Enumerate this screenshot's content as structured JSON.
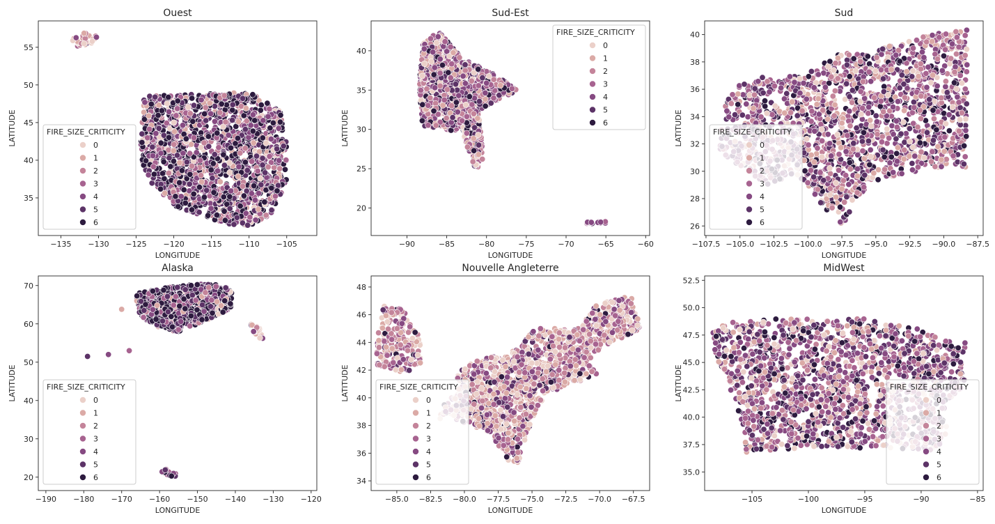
{
  "legend_title": "FIRE_SIZE_CRITICITY",
  "legend_classes": [
    "0",
    "1",
    "2",
    "3",
    "4",
    "5",
    "6"
  ],
  "palette": [
    "#ebd0c9",
    "#dbaaa6",
    "#c4849a",
    "#a76390",
    "#864a82",
    "#5c3367",
    "#2d1b3f"
  ],
  "chart_data": [
    {
      "type": "scatter",
      "title": "Ouest",
      "xlabel": "LONGITUDE",
      "ylabel": "LATITUDE",
      "xlim": [
        -138,
        -101
      ],
      "ylim": [
        30,
        58.5
      ],
      "xticks": [
        -135,
        -130,
        -125,
        -120,
        -115,
        -110,
        -105
      ],
      "yticks": [
        35,
        40,
        45,
        50,
        55
      ],
      "xtick_labels": [
        "−135",
        "−130",
        "−125",
        "−120",
        "−115",
        "−110",
        "−105"
      ],
      "ytick_labels": [
        "35",
        "40",
        "45",
        "50",
        "55"
      ],
      "grid": false,
      "legend_placement": "lower-left",
      "regions": [
        {
          "polygon": [
            [
              -124,
              48.5
            ],
            [
              -110,
              49
            ],
            [
              -106,
              47
            ],
            [
              -105,
              42
            ],
            [
              -105,
              37
            ],
            [
              -107,
              33
            ],
            [
              -109,
              31.3
            ],
            [
              -113,
              31.5
            ],
            [
              -116,
              32.5
            ],
            [
              -120,
              34
            ],
            [
              -123,
              37
            ],
            [
              -124.5,
              40
            ],
            [
              -124.3,
              44
            ],
            [
              -124,
              48.5
            ]
          ],
          "count": 1700,
          "weights": [
            0.04,
            0.06,
            0.08,
            0.12,
            0.15,
            0.2,
            0.35
          ]
        },
        {
          "polygon": [
            [
              -133,
              55
            ],
            [
              -131,
              55.5
            ],
            [
              -130,
              56.5
            ],
            [
              -132.5,
              57
            ],
            [
              -133.5,
              56
            ]
          ],
          "count": 30,
          "weights": [
            0.3,
            0.3,
            0.2,
            0.1,
            0.05,
            0.05,
            0
          ]
        }
      ]
    },
    {
      "type": "scatter",
      "title": "Sud-Est",
      "xlabel": "LONGITUDE",
      "ylabel": "LATITUDE",
      "xlim": [
        -94.5,
        -59.5
      ],
      "ylim": [
        16.5,
        43.8
      ],
      "xticks": [
        -90,
        -85,
        -80,
        -75,
        -70,
        -65,
        -60
      ],
      "yticks": [
        20,
        25,
        30,
        35,
        40
      ],
      "xtick_labels": [
        "−90",
        "−85",
        "−80",
        "−75",
        "−70",
        "−65",
        "−60"
      ],
      "ytick_labels": [
        "20",
        "25",
        "30",
        "35",
        "40"
      ],
      "grid": false,
      "legend_placement": "top-right",
      "regions": [
        {
          "polygon": [
            [
              -88,
              41
            ],
            [
              -86,
              42.5
            ],
            [
              -83,
              39
            ],
            [
              -79,
              37
            ],
            [
              -76,
              35
            ],
            [
              -80,
              33
            ],
            [
              -81,
              32
            ],
            [
              -80.5,
              28
            ],
            [
              -80.5,
              25.5
            ],
            [
              -81.5,
              25
            ],
            [
              -82.5,
              28
            ],
            [
              -83,
              29.5
            ],
            [
              -85,
              30
            ],
            [
              -88,
              30.3
            ],
            [
              -88.5,
              35
            ]
          ],
          "count": 1100,
          "weights": [
            0.08,
            0.1,
            0.14,
            0.2,
            0.2,
            0.15,
            0.13
          ]
        },
        {
          "polygon": [
            [
              -67.5,
              18.3
            ],
            [
              -65,
              18.3
            ],
            [
              -65,
              18
            ],
            [
              -67.5,
              17.9
            ]
          ],
          "count": 15,
          "weights": [
            0,
            0,
            0,
            0.2,
            0.3,
            0.3,
            0.2
          ]
        }
      ]
    },
    {
      "type": "scatter",
      "title": "Sud",
      "xlabel": "LONGITUDE",
      "ylabel": "LATITUDE",
      "xlim": [
        -107.6,
        -87.1
      ],
      "ylim": [
        25.3,
        41
      ],
      "xticks": [
        -107.5,
        -105,
        -102.5,
        -100,
        -97.5,
        -95,
        -92.5,
        -90,
        -87.5
      ],
      "yticks": [
        26,
        28,
        30,
        32,
        34,
        36,
        38,
        40
      ],
      "xtick_labels": [
        "−107.5",
        "−105.0",
        "−102.5",
        "−100.0",
        "−97.5",
        "−95.0",
        "−92.5",
        "−90.0",
        "−87.5"
      ],
      "ytick_labels": [
        "26",
        "28",
        "30",
        "32",
        "34",
        "36",
        "38",
        "40"
      ],
      "grid": false,
      "legend_placement": "lower-left",
      "regions": [
        {
          "polygon": [
            [
              -106.5,
              32
            ],
            [
              -106,
              36
            ],
            [
              -103,
              37
            ],
            [
              -100,
              37.2
            ],
            [
              -98,
              38.5
            ],
            [
              -94.5,
              39
            ],
            [
              -91,
              40
            ],
            [
              -88.3,
              40.4
            ],
            [
              -88.2,
              36
            ],
            [
              -88.4,
              30.3
            ],
            [
              -91,
              30.2
            ],
            [
              -93.5,
              29.7
            ],
            [
              -95,
              29.3
            ],
            [
              -96.5,
              28
            ],
            [
              -97,
              26.5
            ],
            [
              -97.5,
              26
            ],
            [
              -99,
              27.5
            ],
            [
              -100,
              29
            ],
            [
              -101,
              29.8
            ],
            [
              -103,
              29
            ],
            [
              -104.5,
              30
            ],
            [
              -106.5,
              31.5
            ]
          ],
          "count": 1800,
          "weights": [
            0.08,
            0.1,
            0.14,
            0.18,
            0.2,
            0.17,
            0.13
          ]
        }
      ]
    },
    {
      "type": "scatter",
      "title": "Alaska",
      "xlabel": "LONGITUDE",
      "ylabel": "LATITUDE",
      "xlim": [
        -192,
        -118.5
      ],
      "ylim": [
        16.5,
        72.5
      ],
      "xticks": [
        -190,
        -180,
        -170,
        -160,
        -150,
        -140,
        -130,
        -120
      ],
      "yticks": [
        20,
        30,
        40,
        50,
        60,
        70
      ],
      "xtick_labels": [
        "−190",
        "−180",
        "−170",
        "−160",
        "−150",
        "−140",
        "−130",
        "−120"
      ],
      "ytick_labels": [
        "20",
        "30",
        "40",
        "50",
        "60",
        "70"
      ],
      "grid": false,
      "legend_placement": "lower-left",
      "regions": [
        {
          "polygon": [
            [
              -166,
              68
            ],
            [
              -155,
              70
            ],
            [
              -146,
              70.5
            ],
            [
              -141,
              69
            ],
            [
              -141,
              64
            ],
            [
              -145,
              62
            ],
            [
              -150,
              60
            ],
            [
              -155,
              58
            ],
            [
              -159,
              58.5
            ],
            [
              -162,
              60
            ],
            [
              -165,
              62
            ],
            [
              -166,
              65
            ]
          ],
          "count": 900,
          "weights": [
            0.03,
            0.04,
            0.05,
            0.08,
            0.12,
            0.25,
            0.43
          ]
        },
        {
          "polygon": [
            [
              -136,
              60
            ],
            [
              -134,
              60
            ],
            [
              -132.5,
              57
            ],
            [
              -133,
              55.5
            ],
            [
              -135,
              57
            ]
          ],
          "count": 25,
          "weights": [
            0.3,
            0.3,
            0.2,
            0.1,
            0.05,
            0.05,
            0
          ]
        },
        {
          "polygon": [
            [
              -160,
              22.5
            ],
            [
              -156,
              21.5
            ],
            [
              -155,
              19
            ],
            [
              -156,
              19.5
            ],
            [
              -159.5,
              21.5
            ]
          ],
          "count": 14,
          "weights": [
            0,
            0,
            0,
            0.2,
            0.3,
            0.3,
            0.2
          ]
        }
      ],
      "points": [
        [
          -179,
          51.5,
          5
        ],
        [
          -173.5,
          52,
          4
        ],
        [
          -168,
          53,
          3
        ],
        [
          -170,
          63.8,
          1
        ],
        [
          -166,
          66,
          1
        ]
      ]
    },
    {
      "type": "scatter",
      "title": "Nouvelle Angleterre",
      "xlabel": "LONGITUDE",
      "ylabel": "LATITUDE",
      "xlim": [
        -86.9,
        -66.3
      ],
      "ylim": [
        33.3,
        48.8
      ],
      "xticks": [
        -85,
        -82.5,
        -80,
        -77.5,
        -75,
        -72.5,
        -70,
        -67.5
      ],
      "yticks": [
        34,
        36,
        38,
        40,
        42,
        44,
        46,
        48
      ],
      "xtick_labels": [
        "−85.0",
        "−82.5",
        "−80.0",
        "−77.5",
        "−75.0",
        "−72.5",
        "−70.0",
        "−67.5"
      ],
      "ytick_labels": [
        "34",
        "36",
        "38",
        "40",
        "42",
        "44",
        "46",
        "48"
      ],
      "grid": false,
      "legend_placement": "lower-left",
      "regions": [
        {
          "polygon": [
            [
              -86,
              46.7
            ],
            [
              -84.5,
              46.5
            ],
            [
              -83.3,
              44.5
            ],
            [
              -83.2,
              42.3
            ],
            [
              -84.5,
              41.8
            ],
            [
              -86.5,
              42.3
            ],
            [
              -86.5,
              44
            ]
          ],
          "count": 200,
          "weights": [
            0.15,
            0.2,
            0.25,
            0.2,
            0.12,
            0.06,
            0.02
          ]
        },
        {
          "polygon": [
            [
              -80.5,
              42
            ],
            [
              -79,
              42.7
            ],
            [
              -76,
              43.5
            ],
            [
              -75,
              45
            ],
            [
              -71.5,
              45
            ],
            [
              -70.5,
              46.5
            ],
            [
              -69,
              47.3
            ],
            [
              -67.5,
              47.2
            ],
            [
              -67,
              45
            ],
            [
              -70,
              43.5
            ],
            [
              -71,
              42.5
            ],
            [
              -70,
              41.8
            ],
            [
              -72,
              41
            ],
            [
              -74,
              40.2
            ],
            [
              -75,
              38.5
            ],
            [
              -75.5,
              37
            ],
            [
              -76,
              35.3
            ],
            [
              -77,
              35.5
            ],
            [
              -78,
              37.5
            ],
            [
              -79.5,
              38
            ],
            [
              -81,
              38.5
            ],
            [
              -82,
              38.5
            ],
            [
              -81.5,
              39.5
            ],
            [
              -80.5,
              40.5
            ]
          ],
          "count": 1300,
          "weights": [
            0.2,
            0.2,
            0.2,
            0.15,
            0.12,
            0.08,
            0.05
          ]
        }
      ]
    },
    {
      "type": "scatter",
      "title": "MidWest",
      "xlabel": "LONGITUDE",
      "ylabel": "LATITUDE",
      "xlim": [
        -109.2,
        -84.5
      ],
      "ylim": [
        33.3,
        52.9
      ],
      "xticks": [
        -105,
        -100,
        -95,
        -90,
        -85
      ],
      "yticks": [
        35,
        37.5,
        40,
        42.5,
        45,
        47.5,
        50,
        52.5
      ],
      "xtick_labels": [
        "−105",
        "−100",
        "−95",
        "−90",
        "−85"
      ],
      "ytick_labels": [
        "35.0",
        "37.5",
        "40.0",
        "42.5",
        "45.0",
        "47.5",
        "50.0",
        "52.5"
      ],
      "grid": false,
      "legend_placement": "lower-right",
      "regions": [
        {
          "polygon": [
            [
              -108.5,
              48.5
            ],
            [
              -104,
              49
            ],
            [
              -97,
              49
            ],
            [
              -95,
              49
            ],
            [
              -90,
              48
            ],
            [
              -88,
              47
            ],
            [
              -86,
              46.8
            ],
            [
              -86.5,
              45
            ],
            [
              -86,
              43
            ],
            [
              -87.5,
              41.7
            ],
            [
              -87.8,
              38
            ],
            [
              -89,
              37
            ],
            [
              -94.5,
              37.2
            ],
            [
              -100,
              37.2
            ],
            [
              -102,
              37
            ],
            [
              -104.5,
              37
            ],
            [
              -105.5,
              36.8
            ],
            [
              -106,
              40
            ],
            [
              -108,
              45
            ],
            [
              -108.5,
              47
            ]
          ],
          "count": 1700,
          "weights": [
            0.08,
            0.1,
            0.13,
            0.17,
            0.2,
            0.17,
            0.15
          ]
        }
      ]
    }
  ]
}
